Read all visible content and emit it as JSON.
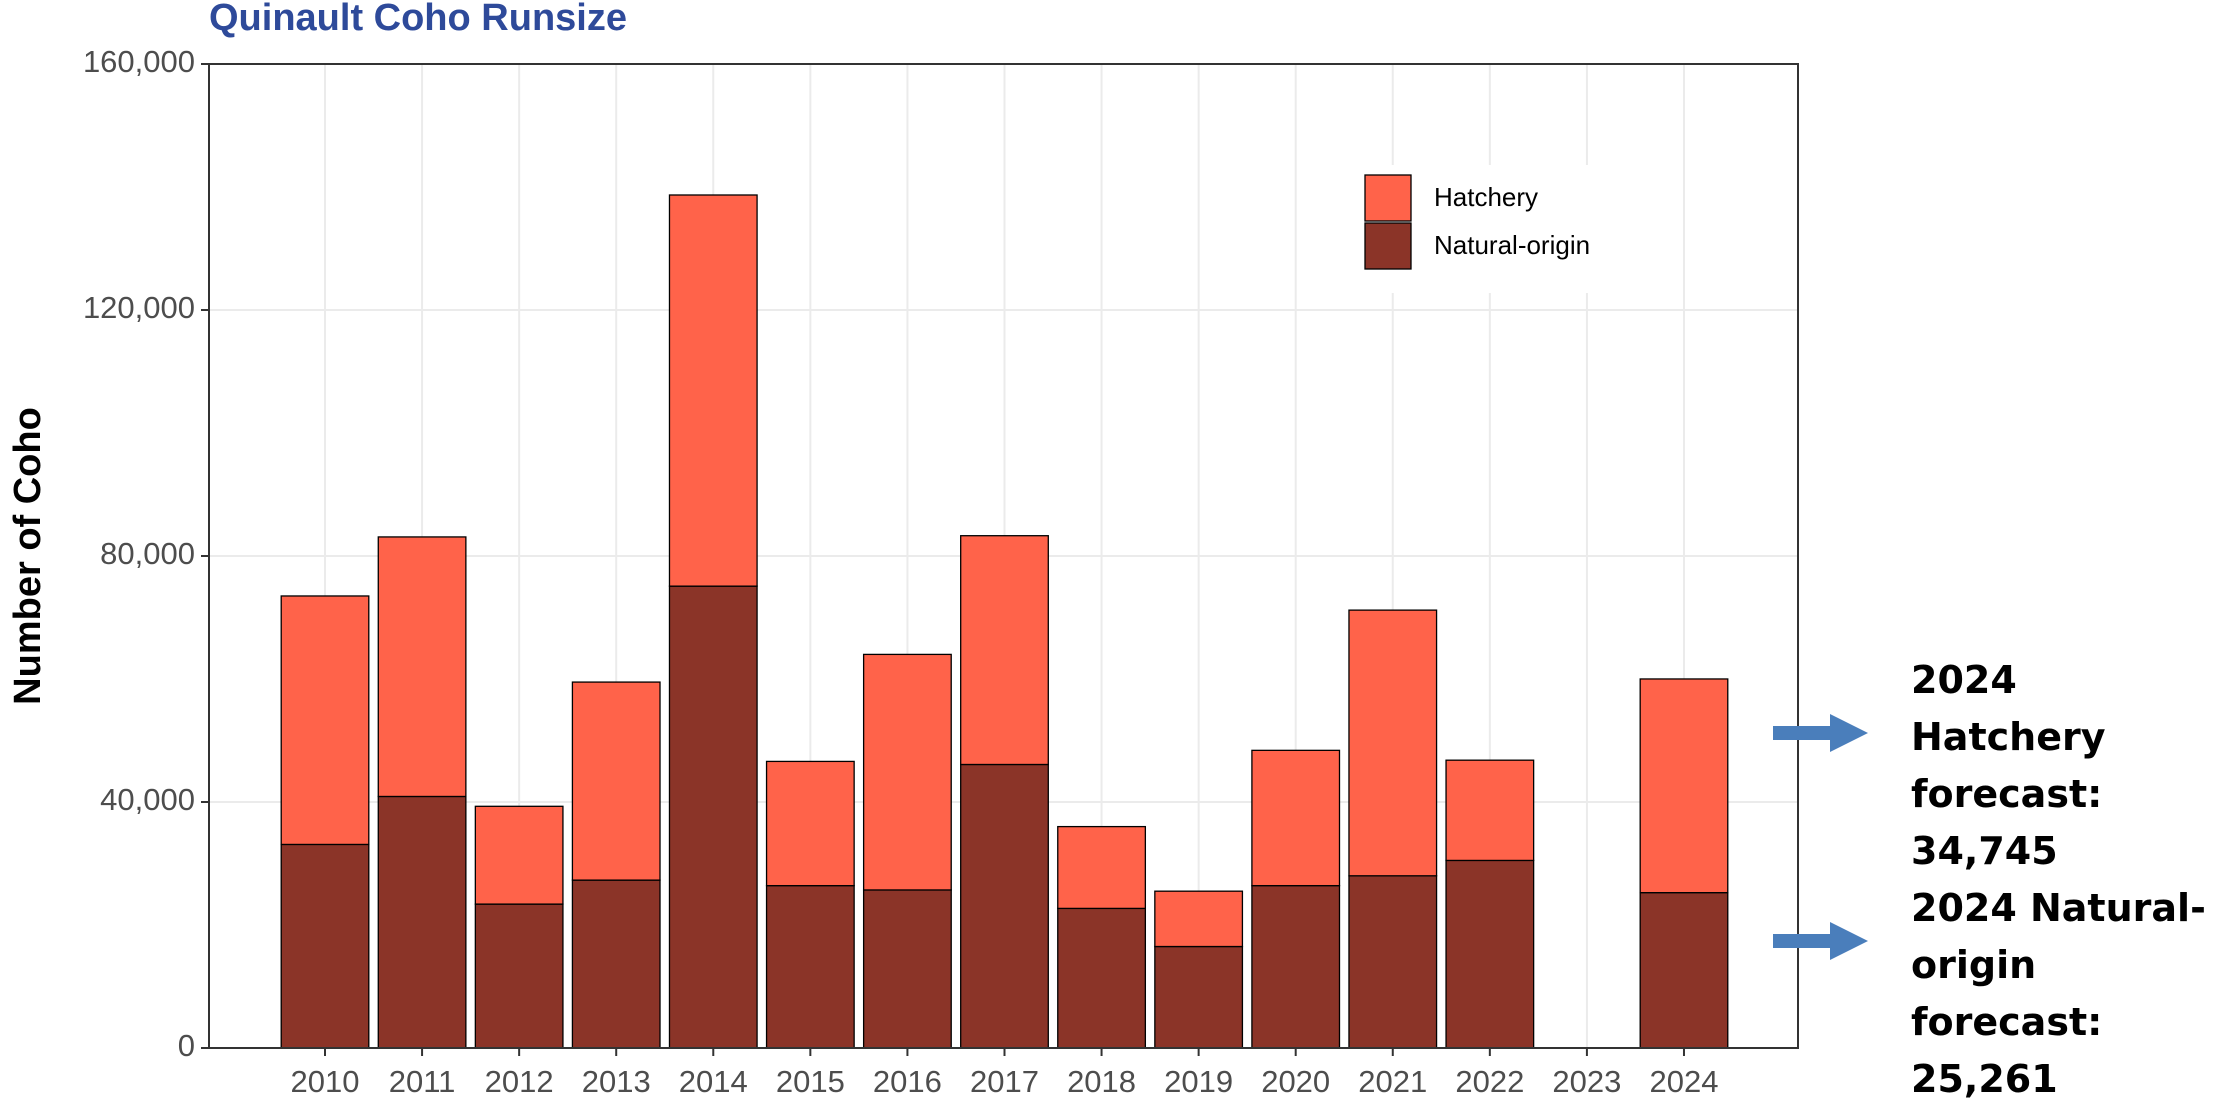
{
  "chart_data": {
    "type": "stacked_bar",
    "title": "Quinault Coho Runsize",
    "y_label": "Number of Coho",
    "categories": [
      "2010",
      "2011",
      "2012",
      "2013",
      "2014",
      "2015",
      "2016",
      "2017",
      "2018",
      "2019",
      "2020",
      "2021",
      "2022",
      "2023",
      "2024"
    ],
    "series": [
      {
        "name": "Natural-origin",
        "color": "#8b3428",
        "values": [
          33100,
          40900,
          23400,
          27300,
          75100,
          26400,
          25700,
          46100,
          22700,
          16500,
          26400,
          28000,
          30500,
          null,
          25261
        ]
      },
      {
        "name": "Hatchery",
        "color": "#ff634a",
        "values": [
          40400,
          42200,
          15900,
          32200,
          63600,
          20200,
          38300,
          37200,
          13300,
          9000,
          22000,
          43200,
          16300,
          null,
          34745
        ]
      }
    ],
    "ylim": [
      0,
      160000
    ],
    "yticks": [
      {
        "value": 0,
        "label": "0"
      },
      {
        "value": 40000,
        "label": "40,000"
      },
      {
        "value": 80000,
        "label": "80,000"
      },
      {
        "value": 120000,
        "label": "120,000"
      },
      {
        "value": 160000,
        "label": "160,000"
      }
    ],
    "grid": true,
    "legend": "top-right",
    "annotations": [
      {
        "text": "2024 Hatchery forecast: 34,745"
      },
      {
        "text": "2024 Natural-origin forecast: 25,261"
      }
    ]
  }
}
